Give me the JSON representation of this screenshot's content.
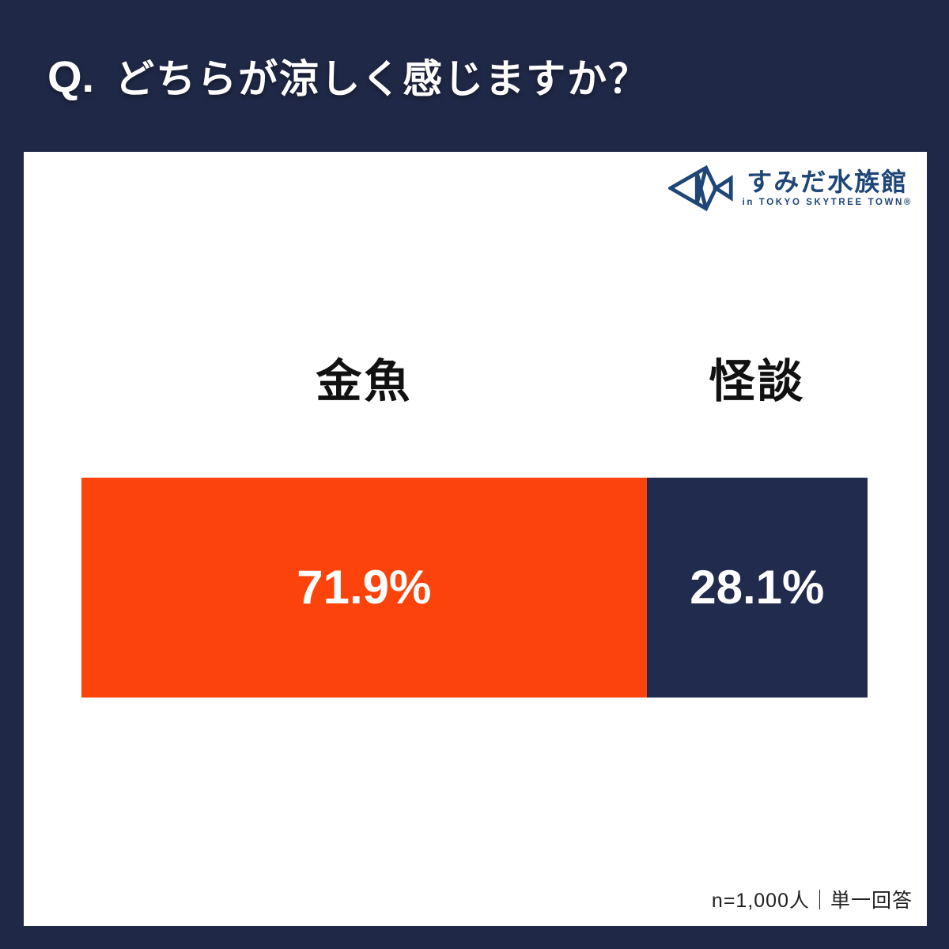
{
  "header": {
    "question_prefix": "Q.",
    "question_text": "どちらが涼しく感じますか？"
  },
  "logo": {
    "name": "すみだ水族館",
    "subtitle": "in TOKYO SKYTREE TOWN®",
    "color": "#1e4677",
    "icon": "geometric-fish-icon"
  },
  "chart_data": {
    "type": "bar",
    "orientation": "horizontal-stacked",
    "title": "どちらが涼しく感じますか？",
    "categories": [
      "金魚",
      "怪談"
    ],
    "values": [
      71.9,
      28.1
    ],
    "value_labels": [
      "71.9%",
      "28.1%"
    ],
    "colors": [
      "#fc430b",
      "#212b4e"
    ],
    "xlim": [
      0,
      100
    ],
    "unit": "%",
    "legend": "none",
    "grid": false
  },
  "footer": {
    "note": "n=1,000人｜単一回答"
  },
  "theme": {
    "background_navy": "#1f2846",
    "accent_orange": "#fc430b",
    "bar_navy": "#212b4e",
    "card_white": "#ffffff"
  }
}
